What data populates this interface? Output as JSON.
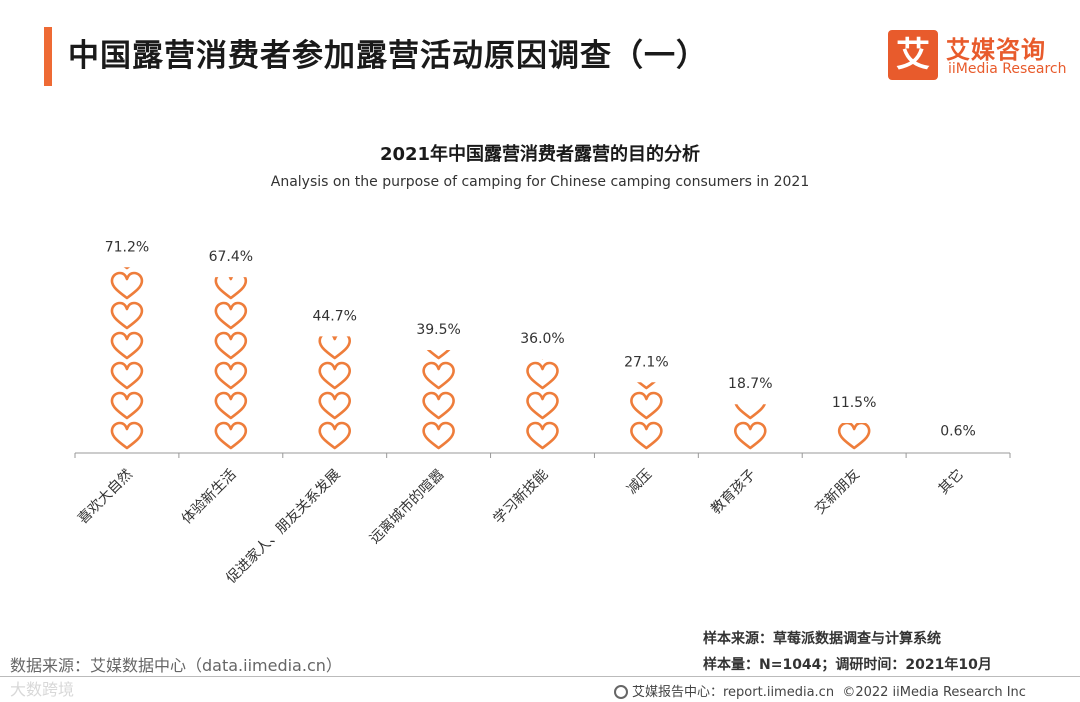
{
  "page": {
    "title": "中国露营消费者参加露营活动原因调查（一）",
    "accent_color": "#ee6a34"
  },
  "logo": {
    "mark": "艾",
    "name_cn": "艾媒咨询",
    "name_en": "iiMedia Research",
    "color": "#e85b2c"
  },
  "chart_data": {
    "type": "bar",
    "title": "2021年中国露营消费者露营的目的分析",
    "subtitle": "Analysis on the purpose of camping for Chinese camping consumers in 2021",
    "categories": [
      "喜欢大自然",
      "体验新生活",
      "促进家人、朋友关系发展",
      "远离城市的喧嚣",
      "学习新技能",
      "减压",
      "教育孩子",
      "交新朋友",
      "其它"
    ],
    "values": [
      71.2,
      67.4,
      44.7,
      39.5,
      36.0,
      27.1,
      18.7,
      11.5,
      0.6
    ],
    "labels": [
      "71.2%",
      "67.4%",
      "44.7%",
      "39.5%",
      "36.0%",
      "27.1%",
      "18.7%",
      "11.5%",
      "0.6%"
    ],
    "unit": "%",
    "marker": "heart",
    "units_per_heart": 11.5,
    "color": "#ee7d3b",
    "xlabel": "",
    "ylabel": ""
  },
  "footer": {
    "source_left": "数据来源：艾媒数据中心（data.iimedia.cn）",
    "watermark": "大数跨境",
    "sample_source": "样本来源：草莓派数据调查与计算系统",
    "sample_size": "样本量：N=1044；调研时间：2021年10月",
    "center": "艾媒报告中心：report.iimedia.cn",
    "copyright": "©2022 iiMedia Research Inc"
  }
}
